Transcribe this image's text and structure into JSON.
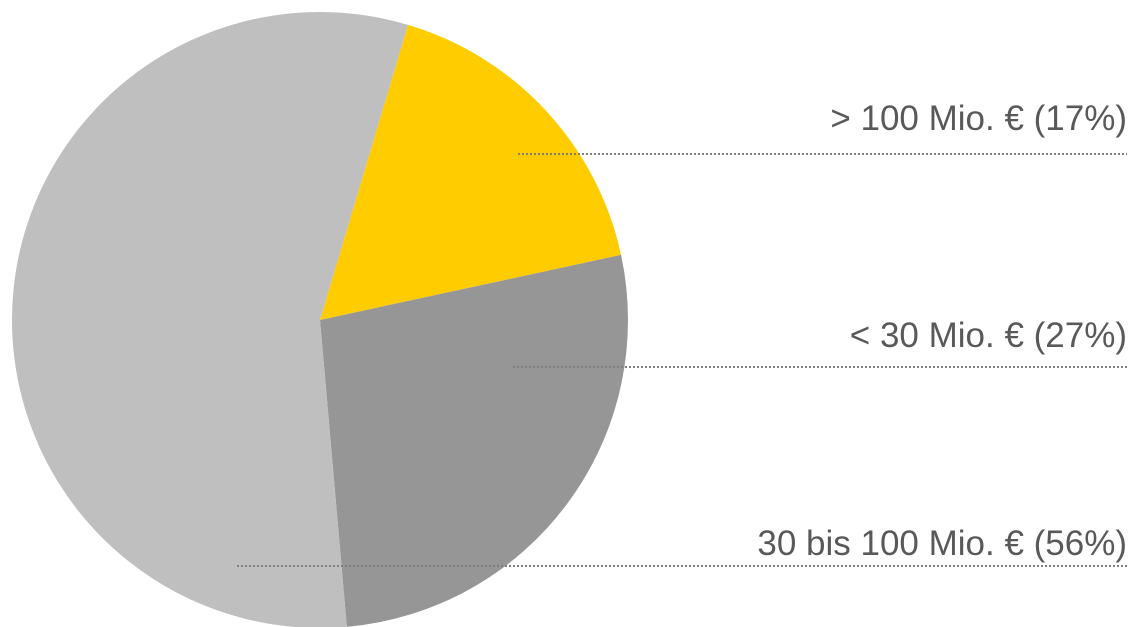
{
  "chart_data": {
    "type": "pie",
    "values": [
      17,
      27,
      56
    ],
    "value_labels": [
      "> 100 Mio. € (17%)",
      "< 30 Mio. € (27%)",
      "30 bis 100 Mio. € (56%)"
    ],
    "colors": [
      "#ffcc00",
      "#969696",
      "#bfbfbf"
    ]
  }
}
